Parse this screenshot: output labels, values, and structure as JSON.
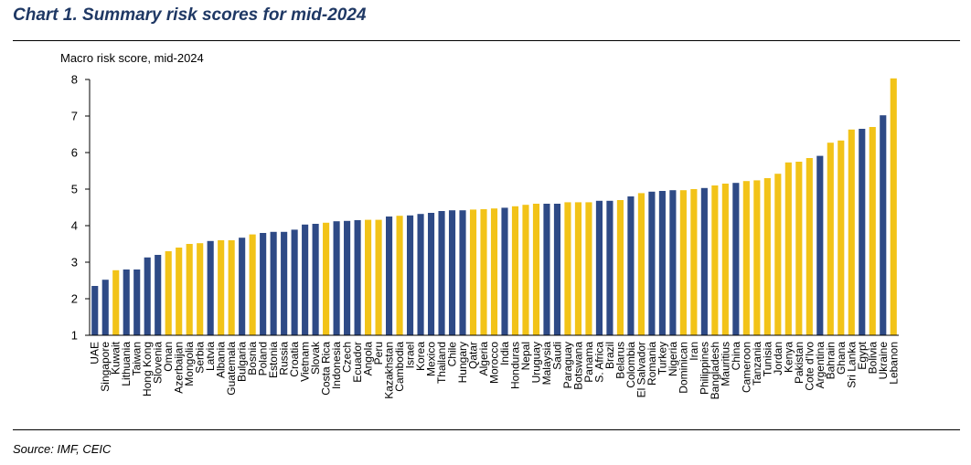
{
  "title": "Chart 1. Summary risk scores for mid-2024",
  "source": "Source: IMF, CEIC",
  "colors": {
    "blue": "#2e4a86",
    "yellow": "#f2c318",
    "title": "#1f3864"
  },
  "chart_data": {
    "type": "bar",
    "ylabel": "Macro risk score, mid-2024",
    "ylim": [
      1,
      8
    ],
    "yticks": [
      1,
      2,
      3,
      4,
      5,
      6,
      7,
      8
    ],
    "grid": false,
    "legend": "none",
    "categories": [
      "UAE",
      "Singapore",
      "Kuwait",
      "Lithuania",
      "Taiwan",
      "Hong Kong",
      "Slovenia",
      "Oman",
      "Azerbaijan",
      "Mongolia",
      "Serbia",
      "Latvia",
      "Albania",
      "Guatemala",
      "Bulgaria",
      "Bosnia",
      "Poland",
      "Estonia",
      "Russia",
      "Croatia",
      "Vietnam",
      "Slovak",
      "Costa Rica",
      "Indonesia",
      "Czech",
      "Ecuador",
      "Angola",
      "Peru",
      "Kazakhstan",
      "Cambodia",
      "Israel",
      "Korea",
      "Mexico",
      "Thailand",
      "Chile",
      "Hungary",
      "Qatar",
      "Algeria",
      "Morocco",
      "India",
      "Honduras",
      "Nepal",
      "Uruguay",
      "Malaysia",
      "Saudi",
      "Paraguay",
      "Botswana",
      "Panama",
      "S. Africa",
      "Brazil",
      "Belarus",
      "Colombia",
      "El Salvador",
      "Romania",
      "Turkey",
      "Nigeria",
      "Dominican",
      "Iran",
      "Philippines",
      "Bangladesh",
      "Mauritius",
      "China",
      "Cameroon",
      "Tanzania",
      "Tunisia",
      "Jordan",
      "Kenya",
      "Pakistan",
      "Cote d'Ivo",
      "Argentina",
      "Bahrain",
      "Ghana",
      "Sri Lanka",
      "Egypt",
      "Bolivia",
      "Ukraine",
      "Lebanon"
    ],
    "values": [
      2.35,
      2.52,
      2.78,
      2.8,
      2.8,
      3.13,
      3.2,
      3.3,
      3.4,
      3.5,
      3.52,
      3.58,
      3.6,
      3.6,
      3.67,
      3.76,
      3.8,
      3.83,
      3.83,
      3.89,
      4.03,
      4.05,
      4.08,
      4.12,
      4.13,
      4.15,
      4.16,
      4.16,
      4.25,
      4.27,
      4.28,
      4.32,
      4.35,
      4.4,
      4.42,
      4.42,
      4.44,
      4.45,
      4.47,
      4.49,
      4.53,
      4.57,
      4.6,
      4.6,
      4.6,
      4.64,
      4.64,
      4.64,
      4.68,
      4.68,
      4.7,
      4.8,
      4.89,
      4.93,
      4.95,
      4.97,
      4.97,
      5.0,
      5.03,
      5.1,
      5.15,
      5.17,
      5.22,
      5.24,
      5.3,
      5.42,
      5.73,
      5.75,
      5.85,
      5.91,
      6.27,
      6.33,
      6.63,
      6.65,
      6.7,
      7.02,
      8.03
    ],
    "bar_colors": [
      "blue",
      "blue",
      "yellow",
      "blue",
      "blue",
      "blue",
      "blue",
      "yellow",
      "yellow",
      "yellow",
      "yellow",
      "blue",
      "yellow",
      "yellow",
      "blue",
      "yellow",
      "blue",
      "blue",
      "blue",
      "blue",
      "blue",
      "blue",
      "yellow",
      "blue",
      "blue",
      "blue",
      "yellow",
      "yellow",
      "blue",
      "yellow",
      "blue",
      "blue",
      "blue",
      "blue",
      "blue",
      "blue",
      "yellow",
      "yellow",
      "yellow",
      "blue",
      "yellow",
      "yellow",
      "yellow",
      "blue",
      "blue",
      "yellow",
      "yellow",
      "yellow",
      "blue",
      "blue",
      "yellow",
      "blue",
      "yellow",
      "blue",
      "blue",
      "blue",
      "yellow",
      "yellow",
      "blue",
      "yellow",
      "yellow",
      "blue",
      "yellow",
      "yellow",
      "yellow",
      "yellow",
      "yellow",
      "yellow",
      "yellow",
      "blue",
      "yellow",
      "yellow",
      "yellow",
      "blue",
      "yellow",
      "blue",
      "yellow"
    ]
  }
}
